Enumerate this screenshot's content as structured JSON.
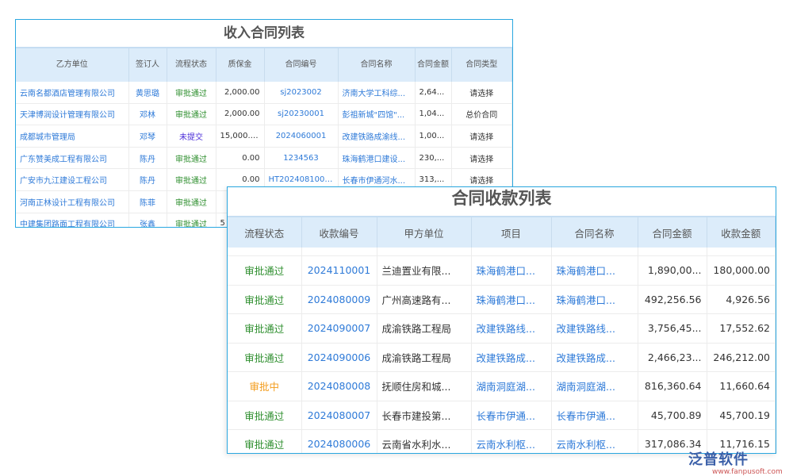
{
  "income": {
    "title": "收入合同列表",
    "headers": [
      "乙方单位",
      "签订人",
      "流程状态",
      "质保金",
      "合同编号",
      "合同名称",
      "合同金额",
      "合同类型"
    ],
    "rows": [
      [
        "云南名都酒店管理有限公司",
        "黄思璐",
        "审批通过",
        "2,000.00",
        "sj2023002",
        "济南大学工科综...",
        "2,64...",
        "请选择"
      ],
      [
        "天津博润设计管理有限公司",
        "邓林",
        "审批通过",
        "2,000.00",
        "sj20230001",
        "彭祖新城\"四馆\"...",
        "1,04...",
        "总价合同"
      ],
      [
        "成都城市管理局",
        "邓琴",
        "未提交",
        "15,000.00",
        "2024060001",
        "改建铁路成渝线...",
        "1,00...",
        "请选择"
      ],
      [
        "广东赞美成工程有限公司",
        "陈丹",
        "审批通过",
        "0.00",
        "1234563",
        "珠海鹤港口建设...",
        "230,...",
        "请选择"
      ],
      [
        "广安市九江建设工程公司",
        "陈丹",
        "审批通过",
        "0.00",
        "HT2024081000...",
        "长春市伊通河水...",
        "313,...",
        "请选择"
      ],
      [
        "河南正林设计工程有限公司",
        "陈菲",
        "审批通过",
        "",
        "",
        "",
        "",
        ""
      ],
      [
        "中建集团路面工程有限公司",
        "张鑫",
        "审批通过",
        "5",
        "",
        "",
        "",
        ""
      ]
    ]
  },
  "receipts": {
    "title": "合同收款列表",
    "headers": [
      "流程状态",
      "收款编号",
      "甲方单位",
      "项目",
      "合同名称",
      "合同金额",
      "收款金额"
    ],
    "rows": [
      [
        "审批通过",
        "2024110001",
        "兰迪置业有限...",
        "珠海鹤港口...",
        "珠海鹤港口...",
        "1,890,00...",
        "180,000.00"
      ],
      [
        "审批通过",
        "2024080009",
        "广州高速路有...",
        "珠海鹤港口...",
        "珠海鹤港口...",
        "492,256.56",
        "4,926.56"
      ],
      [
        "审批通过",
        "2024090007",
        "成渝铁路工程局",
        "改建铁路线...",
        "改建铁路线...",
        "3,756,45...",
        "17,552.62"
      ],
      [
        "审批通过",
        "2024090006",
        "成渝铁路工程局",
        "改建铁路成...",
        "改建铁路成...",
        "2,466,23...",
        "246,212.00"
      ],
      [
        "审批中",
        "2024080008",
        "抚顺住房和城...",
        "湖南洞庭湖...",
        "湖南洞庭湖...",
        "816,360.64",
        "11,660.64"
      ],
      [
        "审批通过",
        "2024080007",
        "长春市建投第...",
        "长春市伊通...",
        "长春市伊通...",
        "45,700.89",
        "45,700.19"
      ],
      [
        "审批通过",
        "2024080006",
        "云南省水利水...",
        "云南水利枢...",
        "云南水利枢...",
        "317,086.34",
        "11,716.15"
      ]
    ]
  },
  "watermark": {
    "brand": "泛普软件",
    "url": "www.fanpusoft.com"
  },
  "colors": {
    "approved": "#2f8f2f",
    "pending": "#f39b1a",
    "unsubmitted": "#4a2cd8",
    "link": "#2e7ad8",
    "header_bg": "#dcecfa",
    "border": "#2aa7e0"
  }
}
